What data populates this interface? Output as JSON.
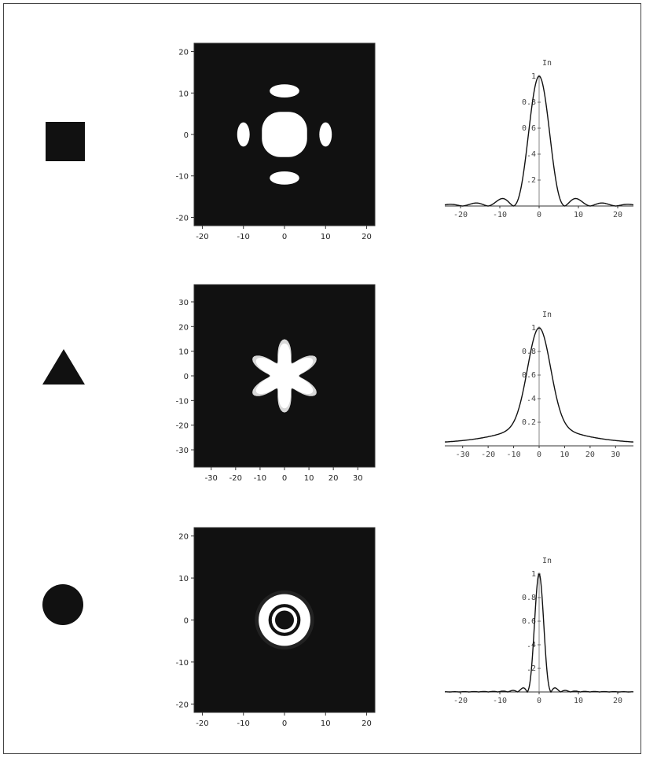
{
  "colors": {
    "ink": "#111111",
    "paper": "#ffffff",
    "bright": "#ffffff",
    "dim": "#d8d8d8"
  },
  "rows": [
    {
      "aperture": "square",
      "pattern": {
        "type": "square",
        "range": [
          -22,
          22
        ],
        "ticks": [
          -20,
          -10,
          0,
          10,
          20
        ],
        "tick_labels": [
          "-20",
          "-10",
          "0",
          "10",
          "20"
        ]
      },
      "profile": {
        "ylabel": "In",
        "xrange": [
          -24,
          24
        ],
        "yrange": [
          0,
          1
        ],
        "xticks": [
          -20,
          -10,
          0,
          10,
          20
        ],
        "xtick_labels": [
          "-20",
          "-10",
          "0",
          "10",
          "20"
        ],
        "yticks": [
          0.2,
          0.4,
          0.6,
          0.8,
          1
        ],
        "ytick_labels": [
          ".2",
          ".4",
          "0.6",
          "0.8",
          "1"
        ],
        "kind": "sinc",
        "scale": 6.5
      }
    },
    {
      "aperture": "triangle",
      "pattern": {
        "type": "star",
        "range": [
          -37,
          37
        ],
        "ticks": [
          -30,
          -20,
          -10,
          0,
          10,
          20,
          30
        ],
        "tick_labels": [
          "-30",
          "-20",
          "-10",
          "0",
          "10",
          "20",
          "30"
        ]
      },
      "profile": {
        "ylabel": "In",
        "xrange": [
          -37,
          37
        ],
        "yrange": [
          0,
          1
        ],
        "xticks": [
          -30,
          -20,
          -10,
          0,
          10,
          20,
          30
        ],
        "xtick_labels": [
          "-30",
          "-20",
          "-10",
          "0",
          "10",
          "20",
          "30"
        ],
        "yticks": [
          0.2,
          0.4,
          0.6,
          0.8,
          1
        ],
        "ytick_labels": "0.2 .4 0.6 0.8 1",
        "kind": "smooth",
        "scale": 6
      }
    },
    {
      "aperture": "circle",
      "pattern": {
        "type": "rings",
        "range": [
          -22,
          22
        ],
        "ticks": [
          -20,
          -10,
          0,
          10,
          20
        ],
        "tick_labels": [
          "-20",
          "-10",
          "0",
          "10",
          "20"
        ]
      },
      "profile": {
        "ylabel": "In",
        "xrange": [
          -24,
          24
        ],
        "yrange": [
          0,
          1
        ],
        "xticks": [
          -20,
          -10,
          0,
          10,
          20
        ],
        "xtick_labels": [
          "-20",
          "-10",
          "0",
          "10",
          "20"
        ],
        "yticks": [
          0.2,
          0.4,
          0.6,
          0.8,
          1
        ],
        "ytick_labels": [
          ".2",
          ".4",
          "0.6",
          "0.8",
          "1"
        ],
        "kind": "airy",
        "scale": 3
      }
    }
  ]
}
